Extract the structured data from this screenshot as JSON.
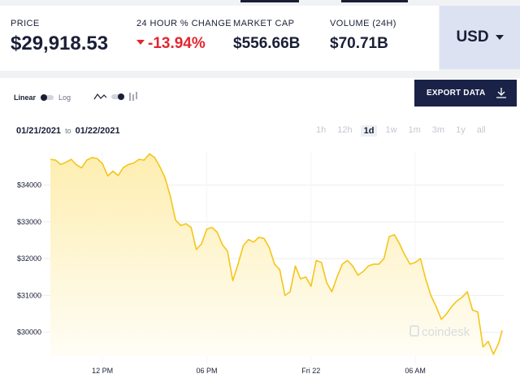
{
  "stats": {
    "price_label": "PRICE",
    "price_value": "$29,918.53",
    "change_label": "24 HOUR % CHANGE",
    "change_value": "-13.94%",
    "market_cap_label": "MARKET CAP",
    "market_cap_value": "$556.66B",
    "volume_label": "VOLUME (24H)",
    "volume_value": "$70.71B"
  },
  "currency": {
    "label": "USD"
  },
  "controls": {
    "linear_label": "Linear",
    "log_label": "Log",
    "export_label": "EXPORT DATA",
    "date_from": "01/21/2021",
    "date_to_word": "to",
    "date_to": "01/22/2021",
    "ranges": [
      "1h",
      "12h",
      "1d",
      "1w",
      "1m",
      "3m",
      "1y",
      "all"
    ],
    "active_range": "1d"
  },
  "colors": {
    "line": "#f5c518",
    "fill_top": "#fdeeb0",
    "fill_bottom": "#fffdf5",
    "accent_dark": "#1a2248",
    "negative": "#e3262e"
  },
  "icons": [
    "caret-down-icon",
    "line-chart-icon",
    "candlestick-icon",
    "download-icon",
    "coindesk-logo"
  ],
  "watermark": "coindesk",
  "chart_data": {
    "type": "area",
    "title": "",
    "xlabel": "",
    "ylabel": "",
    "x_ticks": [
      {
        "label": "12 PM",
        "hour": 3
      },
      {
        "label": "06 PM",
        "hour": 9
      },
      {
        "label": "Fri 22",
        "hour": 15
      },
      {
        "label": "06 AM",
        "hour": 21
      }
    ],
    "y_ticks": [
      "$30000",
      "$31000",
      "$32000",
      "$33000",
      "$34000"
    ],
    "ylim": [
      29350,
      34700
    ],
    "xlim": [
      0,
      26
    ],
    "grid": true,
    "series": [
      {
        "x": [
          0,
          0.3,
          0.6,
          0.9,
          1.2,
          1.5,
          1.8,
          2.1,
          2.4,
          2.7,
          3.0,
          3.3,
          3.6,
          3.9,
          4.2,
          4.5,
          4.8,
          5.1,
          5.4,
          5.7,
          6.0,
          6.3,
          6.6,
          6.9,
          7.2,
          7.5,
          7.8,
          8.1,
          8.4,
          8.7,
          9.0,
          9.3,
          9.6,
          9.9,
          10.2,
          10.5,
          10.8,
          11.1,
          11.4,
          11.7,
          12.0,
          12.3,
          12.6,
          12.9,
          13.2,
          13.5,
          13.8,
          14.1,
          14.4,
          14.7,
          15.0,
          15.3,
          15.6,
          15.9,
          16.2,
          16.5,
          16.8,
          17.1,
          17.4,
          17.7,
          18.0,
          18.3,
          18.6,
          18.9,
          19.2,
          19.5,
          19.8,
          20.1,
          20.4,
          20.7,
          21.0,
          21.3,
          21.6,
          21.9,
          22.2,
          22.5,
          22.8,
          23.1,
          23.4,
          23.7,
          24.0,
          24.3,
          24.6,
          24.9,
          25.2,
          25.5,
          25.8,
          26.0
        ],
        "y": [
          34700,
          34680,
          34560,
          34620,
          34700,
          34550,
          34470,
          34680,
          34750,
          34720,
          34580,
          34250,
          34380,
          34260,
          34480,
          34560,
          34600,
          34700,
          34680,
          34850,
          34750,
          34500,
          34200,
          33700,
          33050,
          32900,
          32950,
          32850,
          32250,
          32400,
          32800,
          32850,
          32720,
          32380,
          32200,
          31400,
          31850,
          32350,
          32520,
          32450,
          32580,
          32550,
          32300,
          31850,
          31700,
          31000,
          31100,
          31800,
          31450,
          31500,
          31250,
          31950,
          31900,
          31350,
          31100,
          31500,
          31850,
          31950,
          31800,
          31550,
          31650,
          31800,
          31850,
          31850,
          32000,
          32600,
          32650,
          32400,
          32100,
          31850,
          31900,
          32000,
          31450,
          31000,
          30700,
          30350,
          30500,
          30700,
          30850,
          30950,
          31100,
          30600,
          30550,
          29600,
          29750,
          29400,
          29700,
          30050
        ]
      }
    ]
  }
}
